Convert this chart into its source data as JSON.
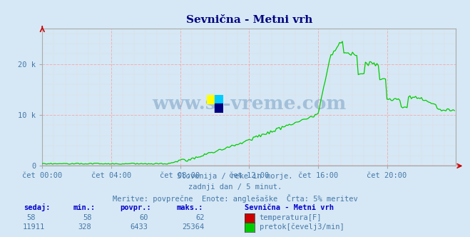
{
  "title": "Sevnična - Metni vrh",
  "title_color": "#000080",
  "bg_color": "#d6e8f5",
  "plot_bg_color": "#d6e8f5",
  "grid_color_major": "#ff9999",
  "grid_color_minor": "#dddddd",
  "xlabel_color": "#4477aa",
  "xtick_labels": [
    "čet 00:00",
    "čet 04:00",
    "čet 08:00",
    "čet 12:00",
    "čet 16:00",
    "čet 20:00"
  ],
  "xtick_positions": [
    0,
    48,
    96,
    144,
    192,
    240
  ],
  "ytick_labels": [
    "0",
    "10 k",
    "20 k"
  ],
  "ytick_positions": [
    0,
    10000,
    20000
  ],
  "ymax": 27000,
  "xmax": 288,
  "temp_color": "#cc0000",
  "flow_color": "#00cc00",
  "watermark_text": "www.si-vreme.com",
  "watermark_color": "#4477aa",
  "watermark_alpha": 0.35,
  "subtitle_lines": [
    "Slovenija / reke in morje.",
    "zadnji dan / 5 minut.",
    "Meritve: povprečne  Enote: anglešaške  Črta: 5% meritev"
  ],
  "subtitle_color": "#4477aa",
  "table_headers": [
    "sedaj:",
    "min.:",
    "povpr.:",
    "maks.:"
  ],
  "table_row1": [
    "58",
    "58",
    "60",
    "62"
  ],
  "table_row2": [
    "11911",
    "328",
    "6433",
    "25364"
  ],
  "legend_title": "Sevnična - Metni vrh",
  "legend_items": [
    "temperatura[F]",
    "pretok[čevelj3/min]"
  ],
  "legend_colors": [
    "#cc0000",
    "#00cc00"
  ],
  "arrow_color": "#cc0000",
  "n_points": 288
}
